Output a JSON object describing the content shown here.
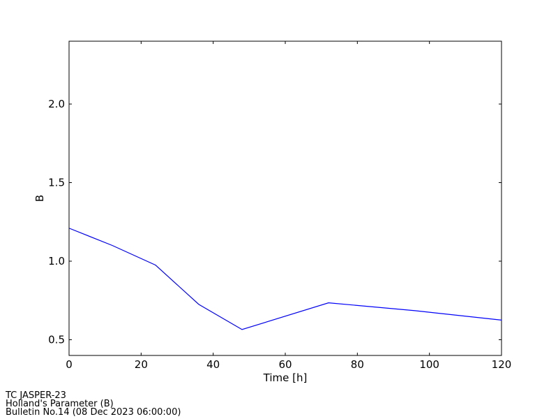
{
  "chart_data": {
    "type": "line",
    "x_label": "Time [h]",
    "y_label": "B",
    "x": [
      0,
      12,
      24,
      36,
      48,
      72,
      96,
      120
    ],
    "series": [
      {
        "color": "#0000ff",
        "values": [
          1.21,
          1.1,
          0.975,
          0.725,
          0.565,
          0.735,
          0.685,
          0.625
        ]
      }
    ],
    "xlim": [
      0,
      120
    ],
    "xticks": [
      0,
      20,
      40,
      60,
      80,
      100,
      120
    ],
    "ylim": [
      0.4,
      2.4
    ],
    "yticks": [
      0.5,
      {
        "value": 1,
        "label": "1.0"
      },
      1.5,
      {
        "value": 2,
        "label": "2.0"
      }
    ],
    "grid": false
  },
  "footer": [
    "TC JASPER-23",
    "Holland's Parameter (B)",
    "Bulletin No.14 (08 Dec 2023  06:00:00)"
  ]
}
